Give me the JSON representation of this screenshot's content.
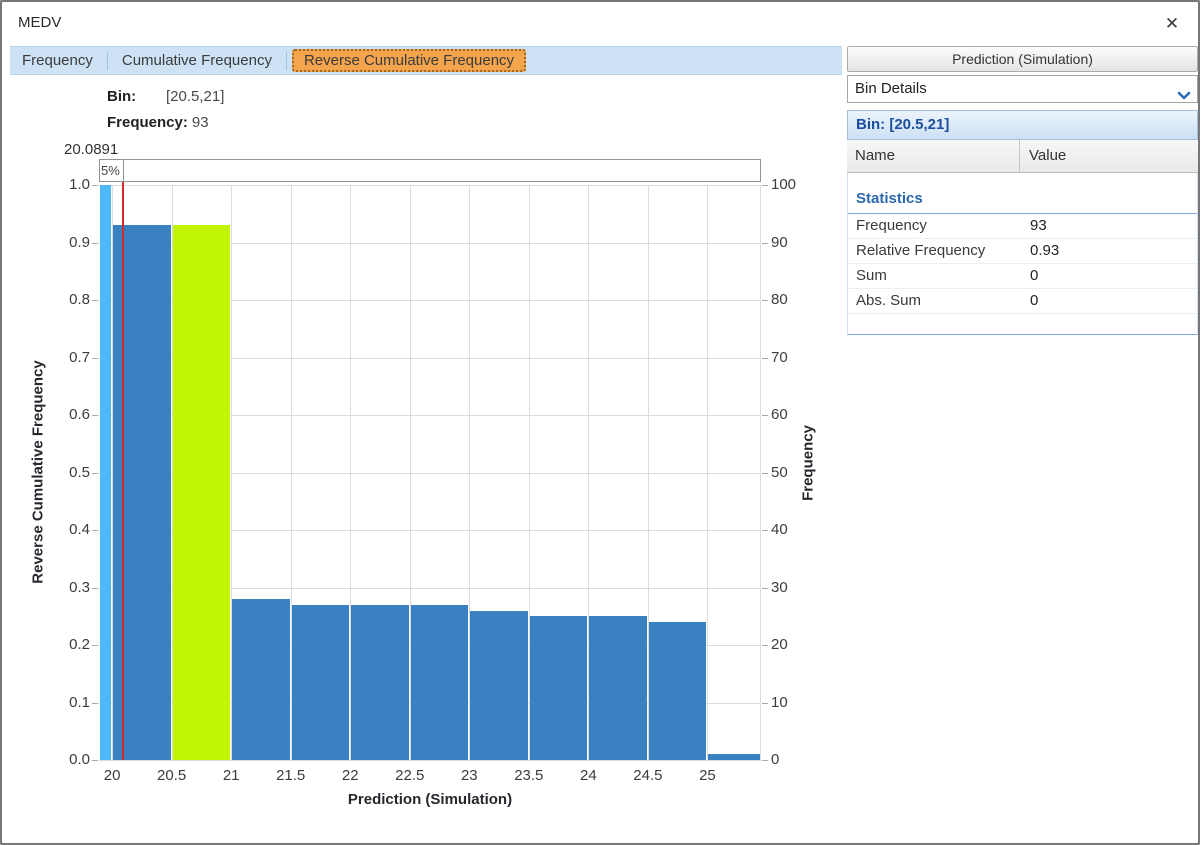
{
  "window": {
    "title": "MEDV",
    "close_icon": "✕"
  },
  "tabs": {
    "items": [
      {
        "label": "Frequency",
        "selected": false
      },
      {
        "label": "Cumulative Frequency",
        "selected": false
      },
      {
        "label": "Reverse Cumulative Frequency",
        "selected": true
      }
    ]
  },
  "bin_readout": {
    "bin_label": "Bin:",
    "bin_value": "[20.5,21]",
    "frequency_label": "Frequency:",
    "frequency_value": "93"
  },
  "percentile_slider": {
    "value_label": "20.0891",
    "segment_label": "5%"
  },
  "chart_data": {
    "type": "bar",
    "title": "",
    "xlabel": "Prediction (Simulation)",
    "ylabel_left": "Reverse Cumulative Frequency",
    "ylabel_right": "Frequency",
    "x_domain": [
      19.89,
      25.45
    ],
    "ylim_left": [
      0,
      1.0
    ],
    "ylim_right": [
      0,
      100
    ],
    "x_ticks": [
      20,
      20.5,
      21,
      21.5,
      22,
      22.5,
      23,
      23.5,
      24,
      24.5,
      25
    ],
    "y_ticks_left": [
      "1.0",
      "0.9",
      "0.8",
      "0.7",
      "0.6",
      "0.5",
      "0.4",
      "0.3",
      "0.2",
      "0.1",
      "0.0"
    ],
    "y_ticks_right": [
      "100",
      "90",
      "80",
      "70",
      "60",
      "50",
      "40",
      "30",
      "20",
      "10",
      "0"
    ],
    "grid": true,
    "legend": "none",
    "marker": {
      "value": 20.0891,
      "percent": "5%",
      "color": "#d22b2b"
    },
    "colors": {
      "normal": "#3981c0",
      "selected": "#c1f502",
      "below-marker": "#4db9fa"
    },
    "bins": [
      {
        "from": 19.89,
        "to": 20.0,
        "rel_freq": 1.0,
        "freq": 100,
        "style": "below-marker"
      },
      {
        "from": 20.0,
        "to": 20.5,
        "rel_freq": 0.93,
        "freq": 93,
        "style": "normal"
      },
      {
        "from": 20.5,
        "to": 21.0,
        "rel_freq": 0.93,
        "freq": 93,
        "style": "selected"
      },
      {
        "from": 21.0,
        "to": 21.5,
        "rel_freq": 0.28,
        "freq": 28,
        "style": "normal"
      },
      {
        "from": 21.5,
        "to": 22.0,
        "rel_freq": 0.27,
        "freq": 27,
        "style": "normal"
      },
      {
        "from": 22.0,
        "to": 22.5,
        "rel_freq": 0.27,
        "freq": 27,
        "style": "normal"
      },
      {
        "from": 22.5,
        "to": 23.0,
        "rel_freq": 0.27,
        "freq": 27,
        "style": "normal"
      },
      {
        "from": 23.0,
        "to": 23.5,
        "rel_freq": 0.26,
        "freq": 26,
        "style": "normal"
      },
      {
        "from": 23.5,
        "to": 24.0,
        "rel_freq": 0.25,
        "freq": 25,
        "style": "normal"
      },
      {
        "from": 24.0,
        "to": 24.5,
        "rel_freq": 0.25,
        "freq": 25,
        "style": "normal"
      },
      {
        "from": 24.5,
        "to": 25.0,
        "rel_freq": 0.24,
        "freq": 24,
        "style": "normal"
      },
      {
        "from": 25.0,
        "to": 25.45,
        "rel_freq": 0.01,
        "freq": 1,
        "style": "normal"
      }
    ]
  },
  "side_panel": {
    "header": "Prediction (Simulation)",
    "dropdown": {
      "value": "Bin Details",
      "chevron_icon": "chevron-down"
    },
    "bin_header": "Bin: [20.5,21]",
    "table": {
      "columns": {
        "name": "Name",
        "value": "Value"
      },
      "section": "Statistics",
      "rows": [
        {
          "name": "Frequency",
          "value": "93"
        },
        {
          "name": "Relative Frequency",
          "value": "0.93"
        },
        {
          "name": "Sum",
          "value": "0"
        },
        {
          "name": "Abs. Sum",
          "value": "0"
        }
      ]
    }
  }
}
